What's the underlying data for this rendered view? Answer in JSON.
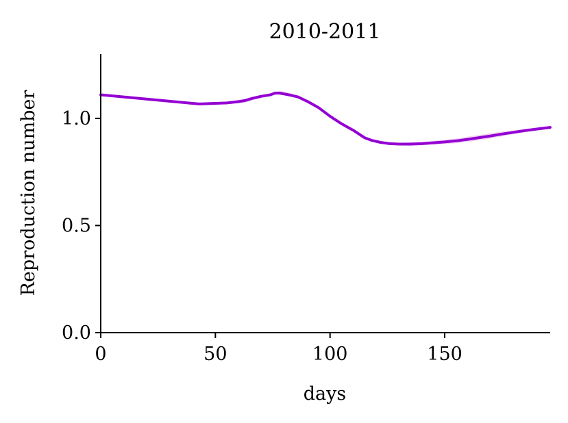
{
  "chart_data": {
    "type": "line",
    "title": "2010-2011",
    "xlabel": "days",
    "ylabel": "Reproduction number",
    "xlim": [
      0,
      196
    ],
    "ylim": [
      0,
      1.3
    ],
    "xticks": [
      0,
      50,
      100,
      150
    ],
    "xtick_labels": [
      "0",
      "50",
      "100",
      "150"
    ],
    "yticks": [
      0.0,
      0.5,
      1.0
    ],
    "ytick_labels": [
      "0.0",
      "0.5",
      "1.0"
    ],
    "grid": false,
    "series": [
      {
        "color": "#9400D3",
        "band_color": "#E7B0E7",
        "x": [
          0,
          10,
          20,
          30,
          40,
          43,
          50,
          55,
          60,
          63,
          66,
          70,
          74,
          76,
          78,
          82,
          86,
          90,
          95,
          100,
          105,
          110,
          115,
          118,
          122,
          126,
          130,
          135,
          140,
          145,
          150,
          155,
          160,
          165,
          170,
          175,
          180,
          185,
          190,
          196
        ],
        "values": [
          1.11,
          1.1,
          1.09,
          1.08,
          1.07,
          1.067,
          1.07,
          1.072,
          1.078,
          1.083,
          1.093,
          1.103,
          1.11,
          1.118,
          1.118,
          1.11,
          1.1,
          1.08,
          1.05,
          1.01,
          0.975,
          0.945,
          0.91,
          0.898,
          0.888,
          0.882,
          0.88,
          0.88,
          0.882,
          0.886,
          0.89,
          0.895,
          0.902,
          0.91,
          0.918,
          0.927,
          0.935,
          0.943,
          0.95,
          0.958
        ],
        "band_lower": [
          1.108,
          1.098,
          1.088,
          1.078,
          1.068,
          1.065,
          1.066,
          1.066,
          1.07,
          1.074,
          1.084,
          1.096,
          1.104,
          1.11,
          1.11,
          1.106,
          1.096,
          1.076,
          1.046,
          1.006,
          0.971,
          0.941,
          0.905,
          0.893,
          0.882,
          0.876,
          0.874,
          0.872,
          0.874,
          0.877,
          0.88,
          0.884,
          0.89,
          0.898,
          0.906,
          0.916,
          0.926,
          0.935,
          0.943,
          0.952
        ],
        "band_upper": [
          1.112,
          1.102,
          1.092,
          1.082,
          1.072,
          1.069,
          1.074,
          1.078,
          1.086,
          1.092,
          1.1,
          1.11,
          1.116,
          1.124,
          1.128,
          1.12,
          1.106,
          1.084,
          1.054,
          1.014,
          0.979,
          0.949,
          0.915,
          0.903,
          0.894,
          0.888,
          0.886,
          0.888,
          0.89,
          0.895,
          0.9,
          0.906,
          0.914,
          0.922,
          0.93,
          0.938,
          0.944,
          0.951,
          0.957,
          0.964
        ]
      }
    ]
  }
}
